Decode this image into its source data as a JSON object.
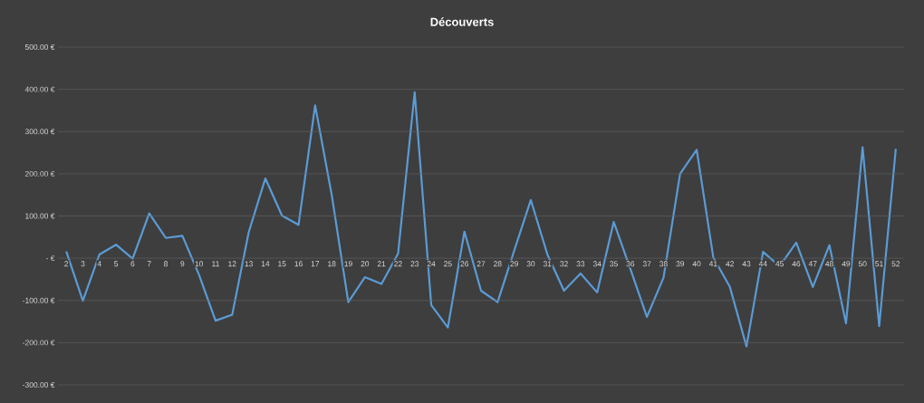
{
  "chart_data": {
    "type": "line",
    "title": "Découverts",
    "categories": [
      "2",
      "3",
      "4",
      "5",
      "6",
      "7",
      "8",
      "9",
      "10",
      "11",
      "12",
      "13",
      "14",
      "15",
      "16",
      "17",
      "18",
      "19",
      "20",
      "21",
      "22",
      "23",
      "24",
      "25",
      "26",
      "27",
      "28",
      "29",
      "30",
      "31",
      "32",
      "33",
      "34",
      "35",
      "36",
      "37",
      "38",
      "39",
      "40",
      "41",
      "42",
      "43",
      "44",
      "45",
      "46",
      "47",
      "48",
      "49",
      "50",
      "51",
      "52"
    ],
    "series": [
      {
        "color": "#5b9bd5",
        "values": [
          16,
          -101,
          9,
          32,
          -1,
          106,
          48,
          53,
          -39,
          -148,
          -134,
          62,
          189,
          101,
          79,
          362,
          150,
          -104,
          -45,
          -61,
          11,
          393,
          -111,
          -164,
          63,
          -77,
          -104,
          18,
          138,
          9,
          -77,
          -36,
          -81,
          86,
          -25,
          -139,
          -46,
          200,
          257,
          2,
          -68,
          -209,
          15,
          -19,
          37,
          -68,
          31,
          -154,
          263,
          -161,
          259
        ]
      }
    ],
    "ylim": [
      -300,
      500
    ],
    "yticks": [
      {
        "value": -300,
        "label": "-300.00 €"
      },
      {
        "value": -200,
        "label": "-200.00 €"
      },
      {
        "value": -100,
        "label": "-100.00 €"
      },
      {
        "value": 0,
        "label": "-   €"
      },
      {
        "value": 100,
        "label": "100.00 €"
      },
      {
        "value": 200,
        "label": "200.00 €"
      },
      {
        "value": 300,
        "label": "300.00 €"
      },
      {
        "value": 400,
        "label": "400.00 €"
      },
      {
        "value": 500,
        "label": "500.00 €"
      }
    ],
    "grid": "y",
    "marker": "none"
  }
}
